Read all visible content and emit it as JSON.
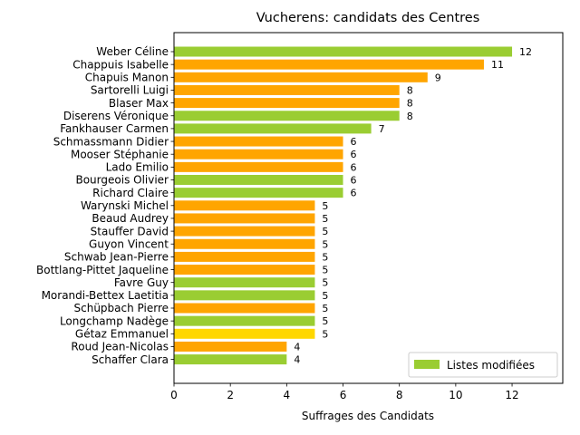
{
  "chart_data": {
    "type": "bar",
    "orientation": "horizontal",
    "title": "Vucherens: candidats des Centres",
    "xlabel": "Suffrages des Candidats",
    "ylabel": "",
    "xlim": [
      0,
      13.8
    ],
    "xticks": [
      0,
      2,
      4,
      6,
      8,
      10,
      12
    ],
    "grid": false,
    "legend": {
      "placement": "lower-right",
      "entries": [
        {
          "label": "Listes modifiées",
          "color": "#9acd32"
        }
      ]
    },
    "colors": {
      "green": "#9acd32",
      "orange": "#ffa500",
      "yellow": "#ffd700"
    },
    "bars": [
      {
        "name": "Weber Céline",
        "value": 12,
        "color": "green"
      },
      {
        "name": "Chappuis Isabelle",
        "value": 11,
        "color": "orange"
      },
      {
        "name": "Chapuis Manon",
        "value": 9,
        "color": "orange"
      },
      {
        "name": "Sartorelli Luigi",
        "value": 8,
        "color": "orange"
      },
      {
        "name": "Blaser Max",
        "value": 8,
        "color": "orange"
      },
      {
        "name": "Diserens Véronique",
        "value": 8,
        "color": "green"
      },
      {
        "name": "Fankhauser Carmen",
        "value": 7,
        "color": "green"
      },
      {
        "name": "Schmassmann Didier",
        "value": 6,
        "color": "orange"
      },
      {
        "name": "Mooser Stéphanie",
        "value": 6,
        "color": "orange"
      },
      {
        "name": "Lado Emilio",
        "value": 6,
        "color": "orange"
      },
      {
        "name": "Bourgeois Olivier",
        "value": 6,
        "color": "green"
      },
      {
        "name": "Richard Claire",
        "value": 6,
        "color": "green"
      },
      {
        "name": "Warynski Michel",
        "value": 5,
        "color": "orange"
      },
      {
        "name": "Beaud Audrey",
        "value": 5,
        "color": "orange"
      },
      {
        "name": "Stauffer David",
        "value": 5,
        "color": "orange"
      },
      {
        "name": "Guyon Vincent",
        "value": 5,
        "color": "orange"
      },
      {
        "name": "Schwab Jean-Pierre",
        "value": 5,
        "color": "orange"
      },
      {
        "name": "Bottlang-Pittet Jaqueline",
        "value": 5,
        "color": "orange"
      },
      {
        "name": "Favre Guy",
        "value": 5,
        "color": "green"
      },
      {
        "name": "Morandi-Bettex Laetitia",
        "value": 5,
        "color": "green"
      },
      {
        "name": "Schüpbach Pierre",
        "value": 5,
        "color": "orange"
      },
      {
        "name": "Longchamp Nadège",
        "value": 5,
        "color": "green"
      },
      {
        "name": "Gétaz Emmanuel",
        "value": 5,
        "color": "yellow"
      },
      {
        "name": "Roud Jean-Nicolas",
        "value": 4,
        "color": "orange"
      },
      {
        "name": "Schaffer Clara",
        "value": 4,
        "color": "green"
      }
    ]
  }
}
